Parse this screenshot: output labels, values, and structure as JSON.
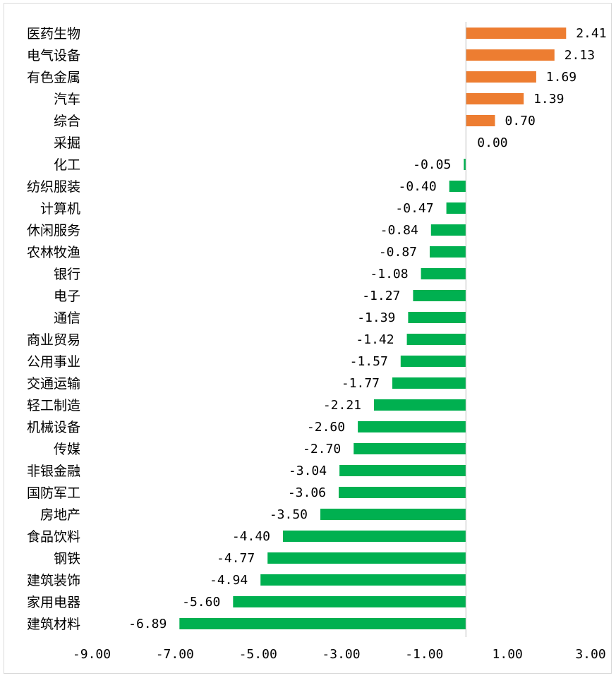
{
  "chart_data": {
    "type": "bar",
    "orientation": "horizontal",
    "categories": [
      "医药生物",
      "电气设备",
      "有色金属",
      "汽车",
      "综合",
      "采掘",
      "化工",
      "纺织服装",
      "计算机",
      "休闲服务",
      "农林牧渔",
      "银行",
      "电子",
      "通信",
      "商业贸易",
      "公用事业",
      "交通运输",
      "轻工制造",
      "机械设备",
      "传媒",
      "非银金融",
      "国防军工",
      "房地产",
      "食品饮料",
      "钢铁",
      "建筑装饰",
      "家用电器",
      "建筑材料"
    ],
    "values": [
      2.41,
      2.13,
      1.69,
      1.39,
      0.7,
      0.0,
      -0.05,
      -0.4,
      -0.47,
      -0.84,
      -0.87,
      -1.08,
      -1.27,
      -1.39,
      -1.42,
      -1.57,
      -1.77,
      -2.21,
      -2.6,
      -2.7,
      -3.04,
      -3.06,
      -3.5,
      -4.4,
      -4.77,
      -4.94,
      -5.6,
      -6.89
    ],
    "value_labels": [
      "2.41",
      "2.13",
      "1.69",
      "1.39",
      "0.70",
      "0.00",
      "-0.05",
      "-0.40",
      "-0.47",
      "-0.84",
      "-0.87",
      "-1.08",
      "-1.27",
      "-1.39",
      "-1.42",
      "-1.57",
      "-1.77",
      "-2.21",
      "-2.60",
      "-2.70",
      "-3.04",
      "-3.06",
      "-3.50",
      "-4.40",
      "-4.77",
      "-4.94",
      "-5.60",
      "-6.89"
    ],
    "x_ticks": [
      -9,
      -7,
      -5,
      -3,
      -1,
      1,
      3
    ],
    "x_tick_labels": [
      "-9.00",
      "-7.00",
      "-5.00",
      "-3.00",
      "-1.00",
      "1.00",
      "3.00"
    ],
    "xlim": [
      -9,
      3
    ],
    "title": "",
    "xlabel": "",
    "ylabel": "",
    "grid": false,
    "legend": "none",
    "colors": {
      "positive": "#ED7D31",
      "negative": "#00B050",
      "axis": "#BFBFBF",
      "frame": "#D9D9D9"
    }
  }
}
